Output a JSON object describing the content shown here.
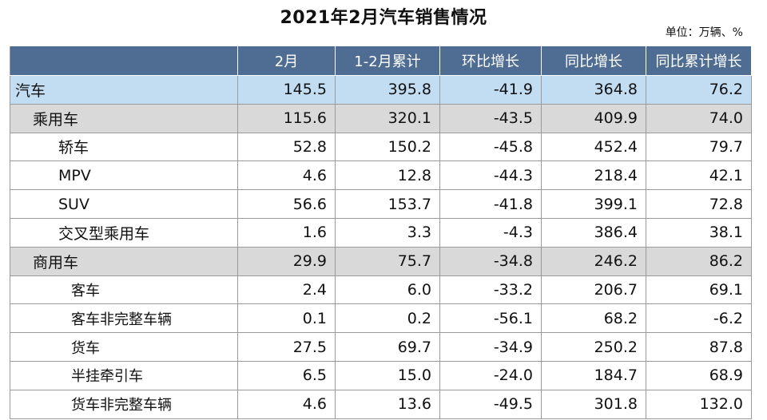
{
  "title": "2021年2月汽车销售情况",
  "unit": "单位：万辆、%",
  "headers": [
    "",
    "2月",
    "1-2月累计",
    "环比增长",
    "同比增长",
    "同比累计增长"
  ],
  "rows": [
    {
      "label": "汽车",
      "level": 0,
      "values": [
        "145.5",
        "395.8",
        "-41.9",
        "364.8",
        "76.2"
      ]
    },
    {
      "label": "乘用车",
      "level": 1,
      "values": [
        "115.6",
        "320.1",
        "-43.5",
        "409.9",
        "74.0"
      ]
    },
    {
      "label": "轿车",
      "level": 2,
      "values": [
        "52.8",
        "150.2",
        "-45.8",
        "452.4",
        "79.7"
      ]
    },
    {
      "label": "MPV",
      "level": 2,
      "values": [
        "4.6",
        "12.8",
        "-44.3",
        "218.4",
        "42.1"
      ]
    },
    {
      "label": "SUV",
      "level": 2,
      "values": [
        "56.6",
        "153.7",
        "-41.8",
        "399.1",
        "72.8"
      ]
    },
    {
      "label": "交叉型乘用车",
      "level": 2,
      "values": [
        "1.6",
        "3.3",
        "-4.3",
        "386.4",
        "38.1"
      ]
    },
    {
      "label": "商用车",
      "level": 1,
      "values": [
        "29.9",
        "75.7",
        "-34.8",
        "246.2",
        "86.2"
      ]
    },
    {
      "label": "客车",
      "level": 3,
      "values": [
        "2.4",
        "6.0",
        "-33.2",
        "206.7",
        "69.1"
      ]
    },
    {
      "label": "客车非完整车辆",
      "level": 4,
      "values": [
        "0.1",
        "0.2",
        "-56.1",
        "68.2",
        "-6.2"
      ]
    },
    {
      "label": "货车",
      "level": 3,
      "values": [
        "27.5",
        "69.7",
        "-34.9",
        "250.2",
        "87.8"
      ]
    },
    {
      "label": "半挂牵引车",
      "level": 4,
      "values": [
        "6.5",
        "15.0",
        "-24.0",
        "184.7",
        "68.9"
      ]
    },
    {
      "label": "货车非完整车辆",
      "level": 4,
      "values": [
        "4.6",
        "13.6",
        "-49.5",
        "301.8",
        "132.0"
      ]
    }
  ],
  "colors": {
    "header_bg": "#4f6d93",
    "total_row_bg": "#c2dcf2",
    "group_row_bg": "#d9d9d9"
  }
}
